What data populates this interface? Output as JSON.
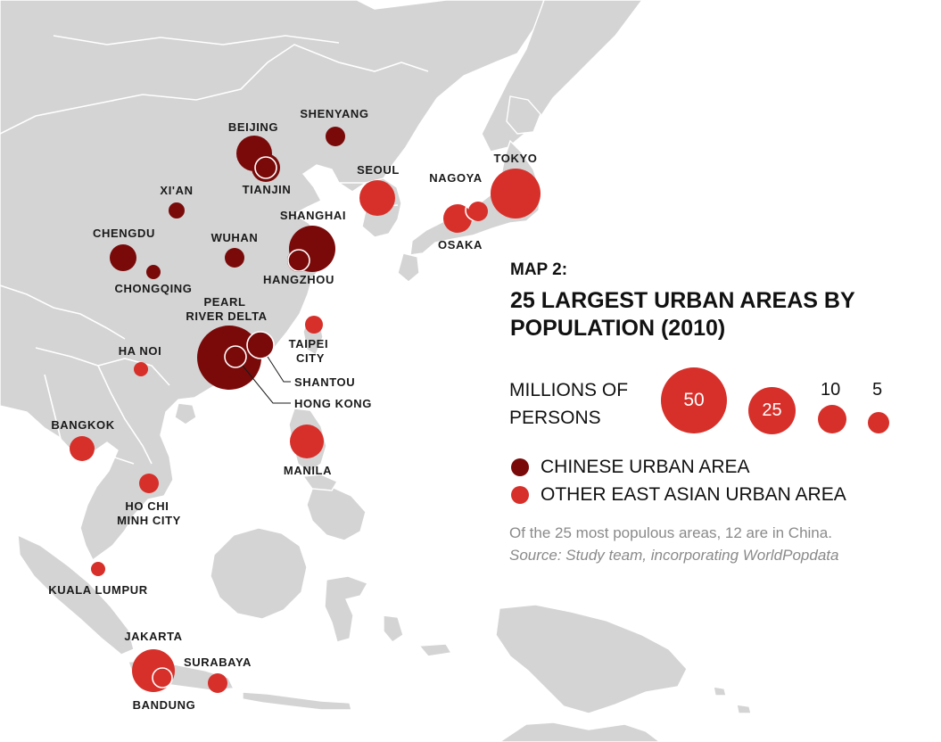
{
  "legend": {
    "map_number": "MAP 2:",
    "title_line1": "25 LARGEST URBAN AREAS BY",
    "title_line2": "POPULATION (2010)",
    "size_label_line1": "MILLIONS OF",
    "size_label_line2": "PERSONS",
    "sizes": [
      {
        "value": "50"
      },
      {
        "value": "25"
      },
      {
        "value": "10"
      },
      {
        "value": "5"
      }
    ],
    "categories": [
      {
        "label": "CHINESE URBAN AREA",
        "color": "#7a0a0a"
      },
      {
        "label": "OTHER EAST ASIAN URBAN AREA",
        "color": "#d7302a"
      }
    ],
    "note": "Of the 25 most populous areas, 12 are in China.",
    "source": "Source: Study team, incorporating WorldPopdata"
  },
  "colors": {
    "chinese": "#7a0a0a",
    "other": "#d7302a",
    "land": "#d4d4d4",
    "sea": "#ffffff"
  },
  "cities": [
    {
      "name": "BEIJING",
      "category": "chinese"
    },
    {
      "name": "TIANJIN",
      "category": "chinese"
    },
    {
      "name": "SHENYANG",
      "category": "chinese"
    },
    {
      "name": "XI'AN",
      "category": "chinese"
    },
    {
      "name": "CHENGDU",
      "category": "chinese"
    },
    {
      "name": "CHONGQING",
      "category": "chinese"
    },
    {
      "name": "WUHAN",
      "category": "chinese"
    },
    {
      "name": "SHANGHAI",
      "category": "chinese"
    },
    {
      "name": "HANGZHOU",
      "category": "chinese"
    },
    {
      "name": "PEARL RIVER DELTA",
      "category": "chinese"
    },
    {
      "name": "HONG KONG",
      "category": "chinese"
    },
    {
      "name": "SHANTOU",
      "category": "chinese"
    },
    {
      "name": "SEOUL",
      "category": "other"
    },
    {
      "name": "TOKYO",
      "category": "other"
    },
    {
      "name": "NAGOYA",
      "category": "other"
    },
    {
      "name": "OSAKA",
      "category": "other"
    },
    {
      "name": "TAIPEI CITY",
      "category": "other"
    },
    {
      "name": "HA NOI",
      "category": "other"
    },
    {
      "name": "MANILA",
      "category": "other"
    },
    {
      "name": "BANGKOK",
      "category": "other"
    },
    {
      "name": "HO CHI MINH CITY",
      "category": "other"
    },
    {
      "name": "KUALA LUMPUR",
      "category": "other"
    },
    {
      "name": "JAKARTA",
      "category": "other"
    },
    {
      "name": "BANDUNG",
      "category": "other"
    },
    {
      "name": "SURABAYA",
      "category": "other"
    }
  ]
}
